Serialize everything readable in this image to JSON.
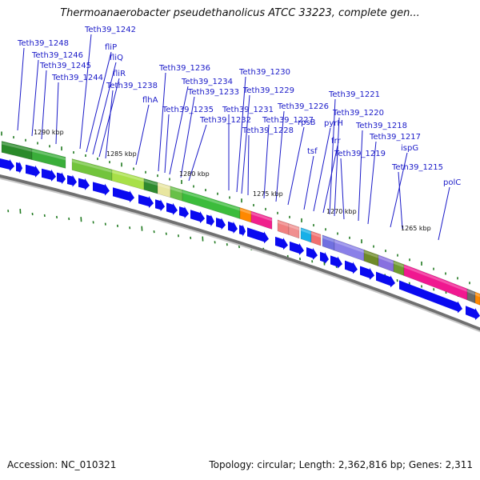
{
  "title": "Thermoanaerobacter pseudethanolicus ATCC 33223, complete gen...",
  "footer": {
    "accession": "Accession: NC_010321",
    "summary": "Topology: circular; Length: 2,362,816 bp; Genes: 2,311"
  },
  "gene_labels": [
    "Teth39_1248",
    "Teth39_1246",
    "Teth39_1245",
    "Teth39_1244",
    "Teth39_1242",
    "fliP",
    "fliQ",
    "fliR",
    "Teth39_1238",
    "flhA",
    "Teth39_1236",
    "Teth39_1234",
    "Teth39_1233",
    "Teth39_1235",
    "Teth39_1232",
    "Teth39_1231",
    "Teth39_1230",
    "Teth39_1229",
    "Teth39_1228",
    "Teth39_1227",
    "Teth39_1226",
    "rpsB",
    "tsf",
    "pyrH",
    "frr",
    "Teth39_1221",
    "Teth39_1220",
    "Teth39_1219",
    "Teth39_1218",
    "Teth39_1217",
    "ispG",
    "Teth39_1215",
    "polC"
  ],
  "kbp_labels": [
    "1290 kbp",
    "1285 kbp",
    "1280 kbp",
    "1275 kbp",
    "1270 kbp",
    "1265 kbp"
  ],
  "colors": {
    "forward_arrow": "#0a0af0",
    "backbone_dark": "#707070",
    "backbone_light": "#c8c8c8",
    "tick": "#207a20",
    "label": "#1a1ac8"
  },
  "segments": [
    {
      "from": 2,
      "to": 40,
      "color": "#2a8a2a"
    },
    {
      "from": 40,
      "to": 82,
      "color": "#3aae3a"
    },
    {
      "from": 90,
      "to": 140,
      "color": "#72c43c"
    },
    {
      "from": 140,
      "to": 180,
      "color": "#a8e048"
    },
    {
      "from": 180,
      "to": 197,
      "color": "#2e8a2e"
    },
    {
      "from": 197,
      "to": 213,
      "color": "#e8e6a0"
    },
    {
      "from": 213,
      "to": 228,
      "color": "#68c048"
    },
    {
      "from": 228,
      "to": 300,
      "color": "#3cbc3c"
    },
    {
      "from": 300,
      "to": 314,
      "color": "#ff8800"
    },
    {
      "from": 314,
      "to": 340,
      "color": "#f0208c"
    },
    {
      "from": 347,
      "to": 361,
      "color": "#f08080"
    },
    {
      "from": 361,
      "to": 374,
      "color": "#f09090"
    },
    {
      "from": 376,
      "to": 389,
      "color": "#18b0e8"
    },
    {
      "from": 389,
      "to": 401,
      "color": "#f07070"
    },
    {
      "from": 403,
      "to": 418,
      "color": "#7070e0"
    },
    {
      "from": 418,
      "to": 455,
      "color": "#8a80e8"
    },
    {
      "from": 455,
      "to": 473,
      "color": "#6e8a28"
    },
    {
      "from": 473,
      "to": 492,
      "color": "#8870e0"
    },
    {
      "from": 492,
      "to": 505,
      "color": "#6e9a30"
    },
    {
      "from": 505,
      "to": 584,
      "color": "#f01890"
    },
    {
      "from": 584,
      "to": 594,
      "color": "#6a6a6a"
    },
    {
      "from": 594,
      "to": 600,
      "color": "#ff8800"
    }
  ],
  "arrows": [
    {
      "from": 0,
      "to": 18
    },
    {
      "from": 20,
      "to": 28
    },
    {
      "from": 32,
      "to": 50
    },
    {
      "from": 52,
      "to": 70
    },
    {
      "from": 71,
      "to": 82
    },
    {
      "from": 84,
      "to": 96
    },
    {
      "from": 98,
      "to": 112
    },
    {
      "from": 116,
      "to": 137
    },
    {
      "from": 141,
      "to": 168
    },
    {
      "from": 173,
      "to": 192
    },
    {
      "from": 194,
      "to": 206
    },
    {
      "from": 208,
      "to": 222
    },
    {
      "from": 224,
      "to": 236
    },
    {
      "from": 238,
      "to": 256
    },
    {
      "from": 258,
      "to": 268
    },
    {
      "from": 270,
      "to": 282
    },
    {
      "from": 285,
      "to": 297
    },
    {
      "from": 299,
      "to": 307
    },
    {
      "from": 309,
      "to": 336
    },
    {
      "from": 344,
      "to": 360
    },
    {
      "from": 362,
      "to": 380
    },
    {
      "from": 383,
      "to": 397
    },
    {
      "from": 400,
      "to": 411
    },
    {
      "from": 413,
      "to": 428
    },
    {
      "from": 431,
      "to": 447
    },
    {
      "from": 450,
      "to": 468
    },
    {
      "from": 470,
      "to": 494
    },
    {
      "from": 499,
      "to": 578
    },
    {
      "from": 582,
      "to": 600
    }
  ]
}
